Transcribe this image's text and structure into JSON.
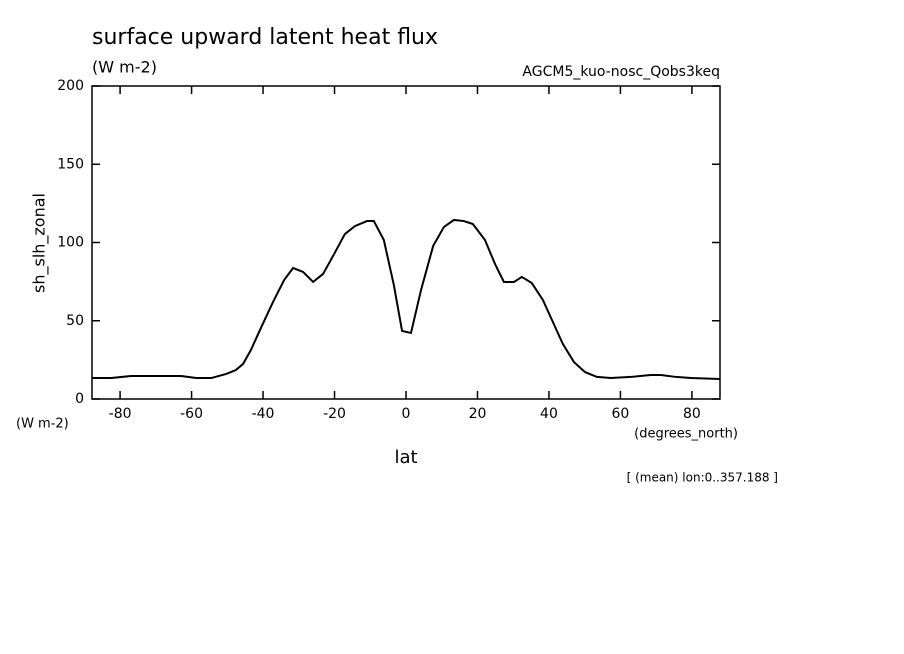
{
  "chart_data": {
    "type": "line",
    "title": "surface upward latent heat flux",
    "subtitle": "(W m-2)",
    "dataset": "AGCM5_kuo-nosc_Qobs3keq",
    "y_label": "sh_slh_zonal",
    "y_units": "(W m-2)",
    "x_label": "lat",
    "x_units": "(degrees_north)",
    "note": "[ (mean) lon:0..357.188 ]",
    "xlim": [
      -87.86,
      87.86
    ],
    "ylim": [
      0,
      200
    ],
    "xticks": [
      -80,
      -60,
      -40,
      -20,
      0,
      20,
      40,
      60,
      80
    ],
    "yticks": [
      0,
      50,
      100,
      150,
      200
    ],
    "x": [
      -87.86,
      -82.5,
      -76.9,
      -71.3,
      -62.9,
      -58.7,
      -54.5,
      -50.3,
      -47.6,
      -45.6,
      -43.4,
      -40.6,
      -37.2,
      -34.1,
      -31.6,
      -28.8,
      -26.0,
      -23.2,
      -20.1,
      -17.1,
      -14.3,
      -10.9,
      -9.0,
      -6.2,
      -3.4,
      -1.1,
      1.4,
      4.2,
      7.6,
      10.6,
      13.4,
      16.2,
      18.7,
      22.1,
      24.9,
      27.4,
      30.2,
      32.4,
      35.2,
      38.3,
      41.1,
      43.9,
      47.0,
      50.1,
      53.4,
      57.3,
      62.9,
      68.5,
      71.3,
      75.5,
      79.7,
      87.86
    ],
    "series": [
      {
        "color": "#000000",
        "values": [
          13.4,
          13.4,
          14.7,
          14.7,
          14.7,
          13.4,
          13.4,
          16.0,
          18.5,
          22.4,
          31.3,
          45.4,
          62.0,
          76.0,
          83.7,
          81.2,
          74.8,
          79.9,
          92.7,
          105.4,
          110.5,
          113.7,
          113.7,
          101.6,
          72.8,
          43.5,
          42.2,
          69.6,
          97.8,
          109.9,
          114.4,
          113.7,
          111.8,
          101.6,
          86.3,
          74.8,
          74.8,
          78.0,
          74.1,
          63.3,
          49.2,
          35.1,
          23.6,
          17.2,
          14.1,
          13.4,
          14.1,
          15.3,
          15.3,
          14.1,
          13.4,
          12.8
        ]
      }
    ]
  }
}
